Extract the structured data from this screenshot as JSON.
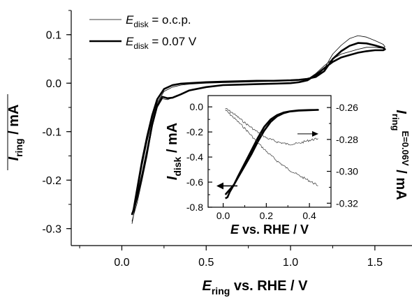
{
  "chart_data": [
    {
      "type": "line",
      "x_axis": {
        "label_main": "E",
        "label_sub": "ring",
        "label_rest": " vs. RHE / V",
        "ticks": [
          "0.0",
          "0.5",
          "1.0",
          "1.5"
        ],
        "range": [
          -0.3,
          1.72
        ]
      },
      "y_axis": {
        "label_main": "I",
        "label_sub": "ring",
        "label_rest": " / mA",
        "ticks": [
          "-0.3",
          "-0.2",
          "-0.1",
          "0.0",
          "0.1"
        ],
        "range": [
          -0.335,
          0.15
        ]
      },
      "legend": {
        "placement": "top-left",
        "items": [
          {
            "prefix": "E",
            "sub": "disk",
            "suffix": " = o.c.p.",
            "style": "thin"
          },
          {
            "prefix": "E",
            "sub": "disk",
            "suffix": " = 0.07 V",
            "style": "thick"
          }
        ]
      },
      "series": [
        {
          "name": "E_disk = o.c.p.",
          "style": "thin",
          "x": [
            0.06,
            0.07,
            0.09,
            0.12,
            0.15,
            0.18,
            0.21,
            0.25,
            0.3,
            0.35,
            0.4,
            0.5,
            0.6,
            0.7,
            0.8,
            0.9,
            1.0,
            1.05,
            1.1,
            1.15,
            1.2,
            1.25,
            1.3,
            1.35,
            1.4,
            1.45,
            1.5,
            1.55,
            1.56,
            1.55,
            1.5,
            1.45,
            1.4,
            1.35,
            1.3,
            1.25,
            1.2,
            1.15,
            1.1,
            1.05,
            1.0,
            0.9,
            0.8,
            0.7,
            0.6,
            0.5,
            0.4,
            0.35,
            0.3,
            0.27,
            0.24,
            0.21,
            0.18,
            0.15,
            0.12,
            0.09,
            0.07,
            0.06
          ],
          "y": [
            -0.29,
            -0.272,
            -0.23,
            -0.17,
            -0.12,
            -0.075,
            -0.04,
            -0.017,
            -0.008,
            -0.004,
            -0.002,
            0.0,
            0.001,
            0.002,
            0.003,
            0.004,
            0.005,
            0.006,
            0.008,
            0.013,
            0.03,
            0.06,
            0.078,
            0.092,
            0.098,
            0.095,
            0.088,
            0.08,
            0.075,
            0.072,
            0.074,
            0.074,
            0.07,
            0.065,
            0.06,
            0.05,
            0.036,
            0.02,
            0.008,
            0.003,
            0.0,
            -0.001,
            -0.002,
            -0.003,
            -0.004,
            -0.008,
            -0.015,
            -0.022,
            -0.03,
            -0.034,
            -0.032,
            -0.05,
            -0.09,
            -0.15,
            -0.2,
            -0.248,
            -0.272,
            -0.285
          ]
        },
        {
          "name": "E_disk = 0.07 V",
          "style": "thick",
          "x": [
            0.06,
            0.07,
            0.09,
            0.12,
            0.15,
            0.18,
            0.21,
            0.25,
            0.3,
            0.35,
            0.4,
            0.5,
            0.6,
            0.7,
            0.8,
            0.9,
            1.0,
            1.05,
            1.1,
            1.15,
            1.2,
            1.25,
            1.3,
            1.35,
            1.4,
            1.45,
            1.5,
            1.55,
            1.56,
            1.55,
            1.5,
            1.45,
            1.4,
            1.35,
            1.3,
            1.25,
            1.2,
            1.15,
            1.1,
            1.05,
            1.0,
            0.9,
            0.8,
            0.7,
            0.6,
            0.5,
            0.4,
            0.35,
            0.3,
            0.27,
            0.24,
            0.21,
            0.18,
            0.15,
            0.12,
            0.09,
            0.07,
            0.06
          ],
          "y": [
            -0.272,
            -0.26,
            -0.22,
            -0.16,
            -0.11,
            -0.066,
            -0.033,
            -0.012,
            -0.004,
            -0.001,
            0.0,
            0.002,
            0.003,
            0.004,
            0.005,
            0.005,
            0.006,
            0.007,
            0.009,
            0.013,
            0.025,
            0.05,
            0.066,
            0.077,
            0.083,
            0.082,
            0.078,
            0.073,
            0.07,
            0.068,
            0.068,
            0.066,
            0.063,
            0.058,
            0.053,
            0.044,
            0.031,
            0.017,
            0.006,
            0.002,
            0.0,
            -0.001,
            -0.002,
            -0.003,
            -0.004,
            -0.008,
            -0.015,
            -0.023,
            -0.03,
            -0.031,
            -0.028,
            -0.046,
            -0.085,
            -0.14,
            -0.19,
            -0.236,
            -0.262,
            -0.27
          ]
        }
      ]
    },
    {
      "type": "line",
      "x_axis": {
        "label_main": "E",
        "label_rest": " vs. RHE / V",
        "ticks": [
          "0.0",
          "0.2",
          "0.4"
        ],
        "range": [
          -0.07,
          0.5
        ]
      },
      "y_axis_left": {
        "label_main": "I",
        "label_sub": "disk",
        "label_rest": " / mA",
        "ticks": [
          "0.0",
          "-0.2",
          "-0.4",
          "-0.6",
          "-0.8"
        ],
        "range": [
          -0.8,
          0.09
        ]
      },
      "y_axis_right": {
        "label_main": "I",
        "label_sub": "ring",
        "label_sup": "E=0.06V",
        "label_rest": " / mA",
        "ticks": [
          "-0.26",
          "-0.28",
          "-0.30",
          "-0.32"
        ],
        "range": [
          -0.3225,
          -0.2525
        ]
      },
      "series": [
        {
          "name": "I_disk",
          "axis": "left",
          "style": "thick",
          "x": [
            0.01,
            0.02,
            0.03,
            0.05,
            0.07,
            0.1,
            0.13,
            0.16,
            0.19,
            0.22,
            0.25,
            0.28,
            0.31,
            0.35,
            0.4,
            0.44,
            0.44,
            0.4,
            0.35,
            0.31,
            0.28,
            0.25,
            0.22,
            0.19,
            0.16,
            0.13,
            0.1,
            0.07,
            0.05,
            0.03,
            0.02,
            0.01
          ],
          "y": [
            -0.73,
            -0.72,
            -0.68,
            -0.62,
            -0.55,
            -0.45,
            -0.35,
            -0.25,
            -0.16,
            -0.1,
            -0.065,
            -0.045,
            -0.035,
            -0.028,
            -0.025,
            -0.024,
            -0.024,
            -0.026,
            -0.03,
            -0.037,
            -0.05,
            -0.075,
            -0.12,
            -0.19,
            -0.28,
            -0.38,
            -0.47,
            -0.56,
            -0.62,
            -0.66,
            -0.68,
            -0.7
          ]
        },
        {
          "name": "I_ring upper",
          "axis": "right",
          "style": "noisy",
          "x": [
            0.01,
            0.05,
            0.1,
            0.15,
            0.2,
            0.25,
            0.3,
            0.35,
            0.4,
            0.44
          ],
          "y": [
            -0.2605,
            -0.264,
            -0.2695,
            -0.2745,
            -0.279,
            -0.2815,
            -0.283,
            -0.2825,
            -0.2805,
            -0.2795
          ]
        },
        {
          "name": "I_ring lower",
          "axis": "right",
          "style": "noisy",
          "x": [
            0.01,
            0.05,
            0.1,
            0.15,
            0.2,
            0.25,
            0.3,
            0.35,
            0.4,
            0.44
          ],
          "y": [
            -0.2615,
            -0.2665,
            -0.273,
            -0.2805,
            -0.2875,
            -0.2935,
            -0.2985,
            -0.3025,
            -0.306,
            -0.309
          ]
        }
      ],
      "arrows": [
        {
          "direction": "left",
          "points_to": "left axis",
          "at_y": -0.63
        },
        {
          "direction": "right",
          "points_to": "right axis",
          "at_y": -0.2765
        }
      ]
    }
  ]
}
